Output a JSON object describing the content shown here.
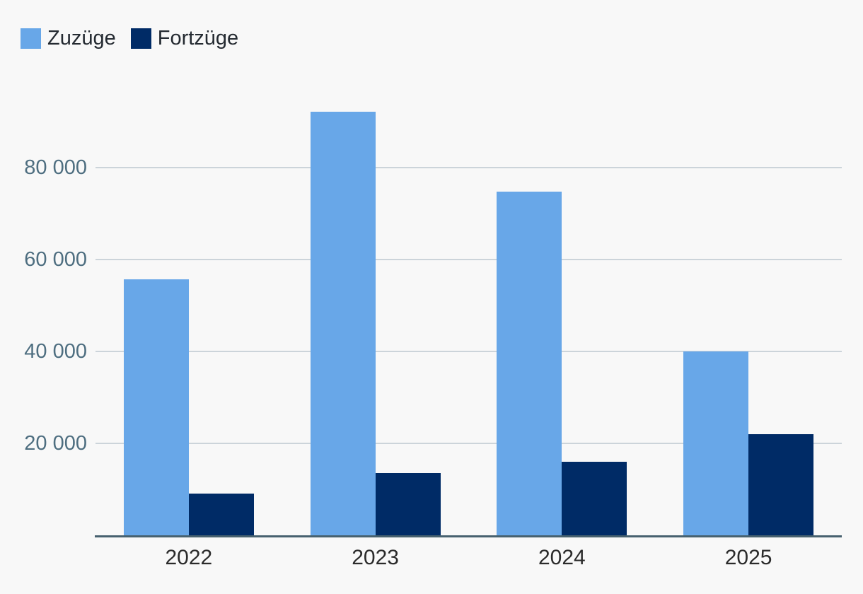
{
  "legend": {
    "items": [
      {
        "key": "zuzuege",
        "label": "Zuzüge",
        "color": "#68a7e8"
      },
      {
        "key": "fortzuege",
        "label": "Fortzüge",
        "color": "#002b66"
      }
    ]
  },
  "chart_data": {
    "type": "bar",
    "categories": [
      "2022",
      "2023",
      "2024",
      "2025"
    ],
    "series": [
      {
        "key": "zuzuege",
        "name": "Zuzüge",
        "color": "#68a7e8",
        "values": [
          55700,
          92200,
          74800,
          40000
        ]
      },
      {
        "key": "fortzuege",
        "name": "Fortzüge",
        "color": "#002b66",
        "values": [
          9100,
          13500,
          16000,
          22000
        ]
      }
    ],
    "title": "",
    "xlabel": "",
    "ylabel": "",
    "ylim": [
      0,
      100000
    ],
    "yticks": [
      20000,
      40000,
      60000,
      80000
    ],
    "ytick_labels": [
      "20 000",
      "40 000",
      "60 000",
      "80 000"
    ],
    "grid": true,
    "legend_position": "top-left"
  },
  "colors": {
    "background": "#f8f8f8",
    "gridline": "#ccd4da",
    "axis_line": "#47616f",
    "ytick_text": "#4e6e80",
    "xtick_text": "#2b2b2b",
    "legend_text": "#242a31"
  }
}
